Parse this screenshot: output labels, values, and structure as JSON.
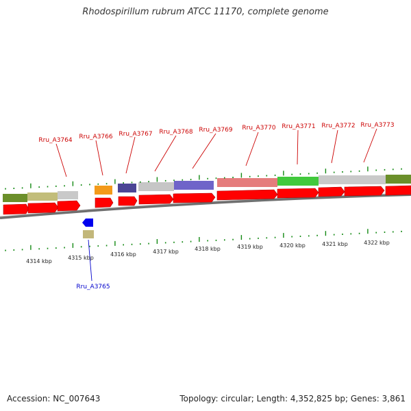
{
  "title": "Rhodospirillum rubrum ATCC 11170, complete genome",
  "footer": {
    "accession": "Accession: NC_007643",
    "summary": "Topology: circular; Length: 4,352,825 bp; Genes: 3,861"
  },
  "colors": {
    "cds_forward": "#ff0000",
    "cds_reverse": "#0000ee",
    "label_forward": "#cc0000",
    "label_reverse": "#0000cc",
    "tick": "#118811",
    "backbone": "#777777"
  },
  "genes_forward": [
    {
      "label": "Rru_A3764"
    },
    {
      "label": "Rru_A3766"
    },
    {
      "label": "Rru_A3767"
    },
    {
      "label": "Rru_A3768"
    },
    {
      "label": "Rru_A3769"
    },
    {
      "label": "Rru_A3770"
    },
    {
      "label": "Rru_A3771"
    },
    {
      "label": "Rru_A3772"
    },
    {
      "label": "Rru_A3773"
    }
  ],
  "genes_reverse": [
    {
      "label": "Rru_A3765"
    }
  ],
  "scale_labels": [
    "4314 kbp",
    "4315 kbp",
    "4316 kbp",
    "4317 kbp",
    "4318 kbp",
    "4319 kbp",
    "4320 kbp",
    "4321 kbp",
    "4322 kbp"
  ]
}
